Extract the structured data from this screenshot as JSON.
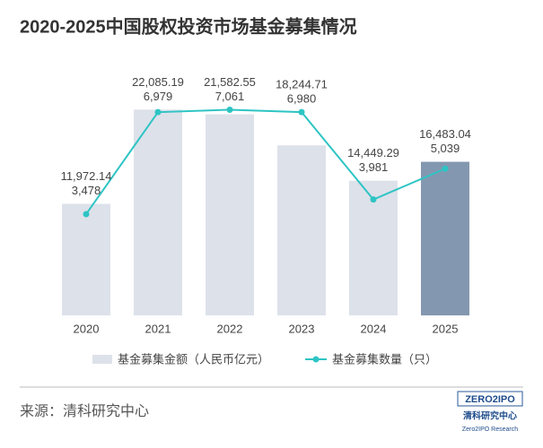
{
  "chart_data": {
    "type": "bar-line",
    "title": "2020-2025中国股权投资市场基金募集情况",
    "categories": [
      "2020",
      "2021",
      "2022",
      "2023",
      "2024",
      "2025"
    ],
    "series": [
      {
        "name": "基金募集金额（人民币亿元）",
        "type": "bar",
        "color": "#dde1ea",
        "colors": [
          "#dde1ea",
          "#dde1ea",
          "#dde1ea",
          "#dde1ea",
          "#dde1ea",
          "#8497b0"
        ],
        "values": [
          11972.14,
          22085.19,
          21582.55,
          18244.71,
          14449.29,
          16483.04
        ],
        "value_labels": [
          "11,972.14",
          "22,085.19",
          "21,582.55",
          "18,244.71",
          "14,449.29",
          "16,483.04"
        ]
      },
      {
        "name": "基金募集数量（只）",
        "type": "line",
        "axis": "y2",
        "color": "#2ec4c4",
        "values": [
          3478,
          6979,
          7061,
          6980,
          3981,
          5039
        ],
        "value_labels": [
          "3,478",
          "6,979",
          "7,061",
          "6,980",
          "3,981",
          "5,039"
        ]
      }
    ],
    "ylim": [
      0,
      25000
    ],
    "y2lim": [
      0,
      8000
    ],
    "source": "来源：清科研究中心",
    "logo": {
      "brand": "ZERO2IPO",
      "name": "清科研究中心",
      "english": "Zero2IPO Research"
    }
  }
}
